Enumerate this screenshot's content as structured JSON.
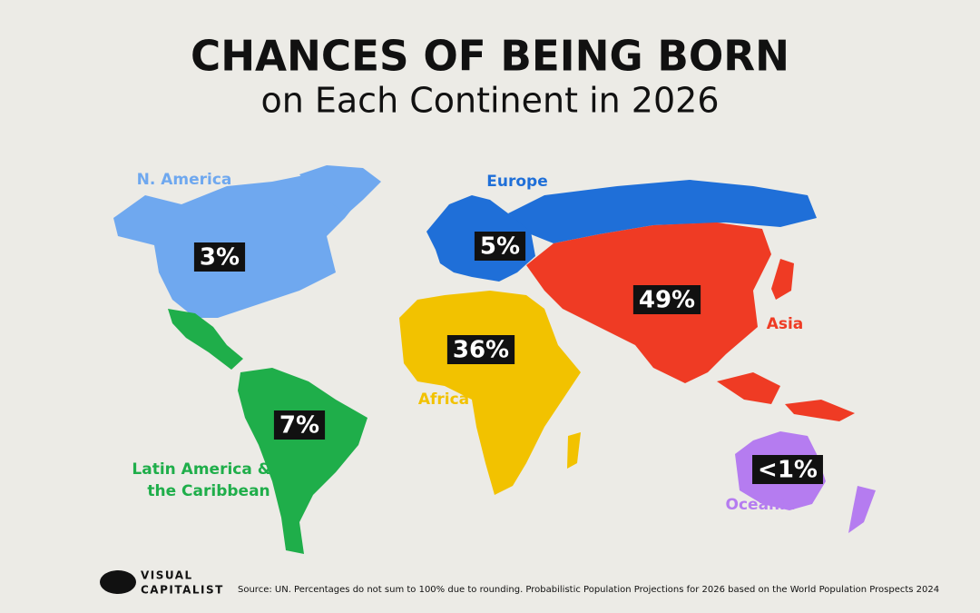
{
  "header": {
    "title": "CHANCES OF BEING BORN",
    "subtitle": "on Each Continent in 2026"
  },
  "regions": [
    {
      "name_lines": [
        "N. America"
      ],
      "share": "3%",
      "color": "#6fa8ef"
    },
    {
      "name_lines": [
        "Europe"
      ],
      "share": "5%",
      "color": "#1f6fd8"
    },
    {
      "name_lines": [
        "Asia"
      ],
      "share": "49%",
      "color": "#ef3b24"
    },
    {
      "name_lines": [
        "Africa"
      ],
      "share": "36%",
      "color": "#f2c200"
    },
    {
      "name_lines": [
        "Latin America &",
        "the Caribbean"
      ],
      "share": "7%",
      "color": "#1fae4a"
    },
    {
      "name_lines": [
        "Oceania"
      ],
      "share": "<1%",
      "color": "#b57cf0"
    }
  ],
  "footer": {
    "logo_lines": [
      "VISUAL",
      "CAPITALIST"
    ],
    "source": "Source: UN. Percentages do not sum to 100% due to rounding. Probabilistic Population Projections for 2026 based on the World Population Prospects 2024"
  }
}
